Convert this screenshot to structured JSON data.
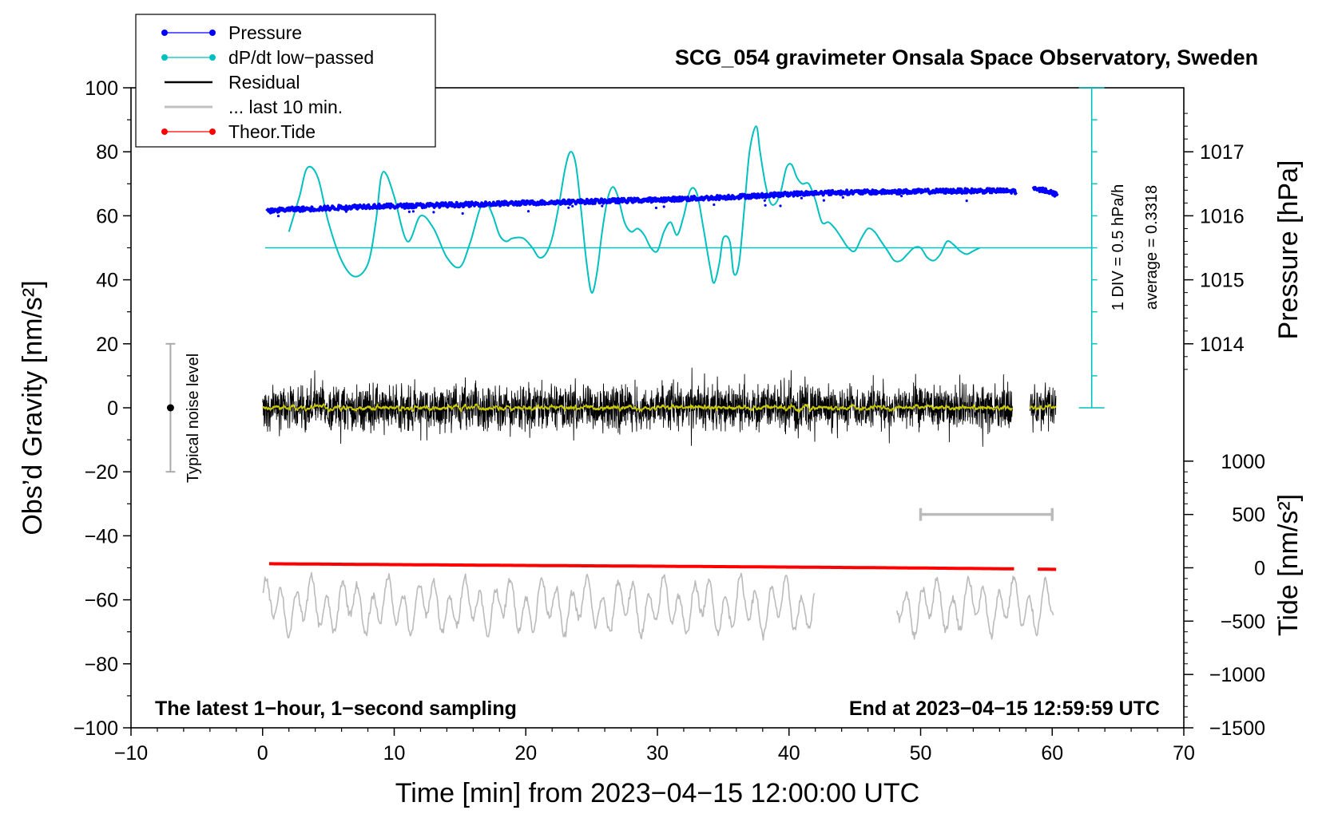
{
  "chart_data": {
    "type": "line",
    "title": "SCG_054 gravimeter Onsala Space Observatory, Sweden",
    "xlabel": "Time [min] from 2023−04−15 12:00:00 UTC",
    "ylabel_left": "Obs’d Gravity [nm/s²]",
    "ylabel_right_top": "Pressure [hPa]",
    "ylabel_right_bottom": "Tide [nm/s²]",
    "xlim": [
      -10,
      70
    ],
    "ylim": [
      -100,
      100
    ],
    "x_ticks": [
      "−10",
      "0",
      "10",
      "20",
      "30",
      "40",
      "50",
      "60",
      "70"
    ],
    "x_tick_values": [
      -10,
      0,
      10,
      20,
      30,
      40,
      50,
      60,
      70
    ],
    "y_ticks": [
      "100",
      "80",
      "60",
      "40",
      "20",
      "0",
      "−20",
      "−40",
      "−60",
      "−80",
      "−100"
    ],
    "y_tick_values": [
      100,
      80,
      60,
      40,
      20,
      0,
      -20,
      -40,
      -60,
      -80,
      -100
    ],
    "pressure_axis": {
      "ticks": [
        "1017",
        "1016",
        "1015",
        "1014"
      ],
      "tick_values": [
        1017,
        1016,
        1015,
        1014
      ],
      "left_units_per_hpa": 20,
      "left_offset": 60,
      "ref_hpa": 1016
    },
    "tide_axis": {
      "ticks": [
        "1000",
        "500",
        "0",
        "−500",
        "−1000",
        "−1500"
      ],
      "tick_values": [
        1000,
        500,
        0,
        -500,
        -1000,
        -1500
      ],
      "left_units_per_unit": 0.03333,
      "left_offset": -50
    },
    "dpdt_scale": {
      "label_div": "1 DIV = 0.5 hPa/h",
      "label_avg": "average = 0.3318",
      "x": 63,
      "y_min": 0,
      "y_max": 100,
      "divisions": 10,
      "baseline_y": 50
    },
    "noise_bar": {
      "label": "Typical noise level",
      "x": -7,
      "center": 0,
      "low": -20,
      "high": 20
    },
    "last10_bar": {
      "x_start": 50,
      "x_end": 60,
      "tide_value": 500
    },
    "annotations": {
      "bottom_left": "The latest 1−hour, 1−second sampling",
      "bottom_right": "End at 2023−04−15 12:59:59 UTC"
    },
    "legend": [
      {
        "label": "Pressure",
        "color": "#0000ff",
        "marker": true
      },
      {
        "label": "dP/dt low−passed",
        "color": "#00c0c0",
        "marker": true
      },
      {
        "label": "Residual",
        "color": "#000000",
        "marker": false
      },
      {
        "label": "... last 10 min.",
        "color": "#c0c0c0",
        "marker": false
      },
      {
        "label": "Theor.Tide",
        "color": "#ff0000",
        "marker": true
      }
    ],
    "series": [
      {
        "name": "Pressure",
        "color": "#0000ff",
        "x": [
          0.3,
          2,
          4,
          6,
          8,
          10,
          12,
          14,
          16,
          18,
          20,
          22,
          24,
          26,
          28,
          30,
          32,
          34,
          36,
          38,
          40,
          42,
          44,
          46,
          48,
          50,
          52,
          54,
          56,
          57.3,
          58.5,
          59.5,
          60.4
        ],
        "y": [
          61.5,
          62.0,
          62.2,
          62.6,
          63.0,
          63.0,
          63.2,
          63.4,
          63.6,
          63.8,
          64.0,
          64.2,
          64.4,
          64.6,
          64.8,
          65.0,
          65.3,
          65.6,
          66.0,
          66.3,
          66.8,
          67.1,
          67.3,
          67.4,
          67.5,
          67.6,
          67.7,
          67.8,
          67.8,
          67.6,
          68.2,
          68.0,
          66.5
        ]
      },
      {
        "name": "dP/dt low−passed",
        "color": "#00c0c0",
        "x": [
          2.0,
          2.8,
          3.4,
          4.2,
          5.0,
          6.0,
          7.0,
          8.0,
          8.6,
          9.0,
          9.4,
          10.0,
          11.0,
          12.0,
          13.0,
          14.0,
          15.0,
          15.8,
          16.5,
          17.0,
          17.5,
          18.0,
          18.5,
          19.0,
          19.8,
          20.5,
          21.0,
          21.5,
          22.0,
          22.5,
          23.0,
          23.4,
          23.8,
          24.2,
          24.6,
          25.0,
          25.4,
          25.8,
          26.2,
          26.6,
          27.0,
          27.5,
          28.0,
          28.5,
          29.0,
          29.5,
          30.0,
          30.5,
          31.0,
          31.5,
          32.0,
          32.5,
          33.0,
          33.5,
          34.0,
          34.3,
          34.7,
          35.0,
          35.5,
          35.8,
          36.2,
          36.6,
          37.0,
          37.5,
          37.8,
          38.2,
          38.6,
          39.0,
          39.4,
          39.8,
          40.2,
          40.6,
          41.0,
          41.5,
          42.0,
          42.5,
          43.0,
          43.5,
          44.0,
          44.5,
          45.0,
          45.5,
          46.0,
          46.5,
          47.0,
          47.5,
          48.0,
          48.5,
          49.0,
          49.5,
          50.0,
          50.5,
          51.0,
          51.5,
          52.0,
          52.5,
          53.0,
          53.5,
          54.0,
          54.5
        ],
        "y": [
          55,
          66,
          75,
          72,
          58,
          46,
          41,
          45,
          58,
          72,
          73,
          66,
          52,
          60,
          56,
          47,
          44,
          52,
          62,
          64,
          60,
          54,
          52,
          53,
          53,
          50,
          47,
          48,
          53,
          63,
          75,
          80,
          76,
          62,
          46,
          36,
          42,
          55,
          65,
          69,
          66,
          58,
          55,
          56,
          54,
          50,
          49,
          55,
          58,
          54,
          60,
          68,
          67,
          56,
          44,
          39,
          45,
          53,
          52,
          42,
          45,
          62,
          80,
          88,
          80,
          70,
          64,
          64,
          68,
          75,
          76,
          72,
          70,
          70,
          65,
          58,
          58,
          56,
          53,
          50,
          49,
          53,
          56,
          55,
          52,
          49,
          46,
          46,
          48,
          50,
          50,
          47,
          46,
          48,
          52,
          51,
          49,
          48,
          49,
          50
        ]
      },
      {
        "name": "Theor.Tide",
        "color": "#ff0000",
        "x": [
          0.5,
          10,
          20,
          30,
          40,
          50,
          57.3,
          58.8,
          60.5
        ],
        "tide": [
          38,
          30,
          22,
          15,
          7,
          -2,
          -10,
          -12,
          -15
        ]
      }
    ]
  }
}
